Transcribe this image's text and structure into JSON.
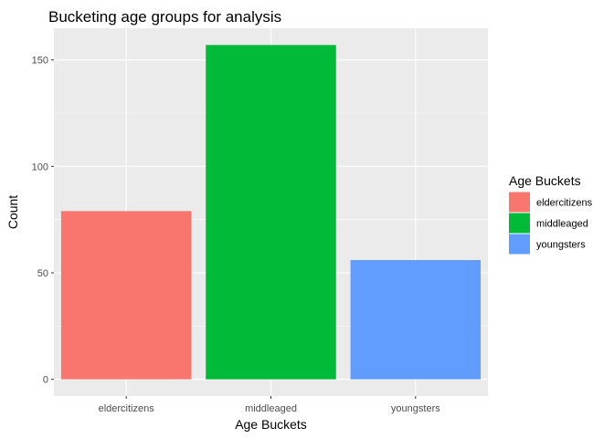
{
  "chart_data": {
    "type": "bar",
    "title": "Bucketing age groups for analysis",
    "xlabel": "Age Buckets",
    "ylabel": "Count",
    "categories": [
      "eldercitizens",
      "middleaged",
      "youngsters"
    ],
    "values": [
      79,
      157,
      56
    ],
    "colors": [
      "#F8766D",
      "#00BA38",
      "#619CFF"
    ],
    "ylim": [
      -7.85,
      164.85
    ],
    "yticks": [
      0,
      50,
      100,
      150
    ],
    "grid": true,
    "panel_background": "#EBEBEB",
    "legend": {
      "title": "Age Buckets",
      "position": "right",
      "entries": [
        "eldercitizens",
        "middleaged",
        "youngsters"
      ]
    }
  }
}
